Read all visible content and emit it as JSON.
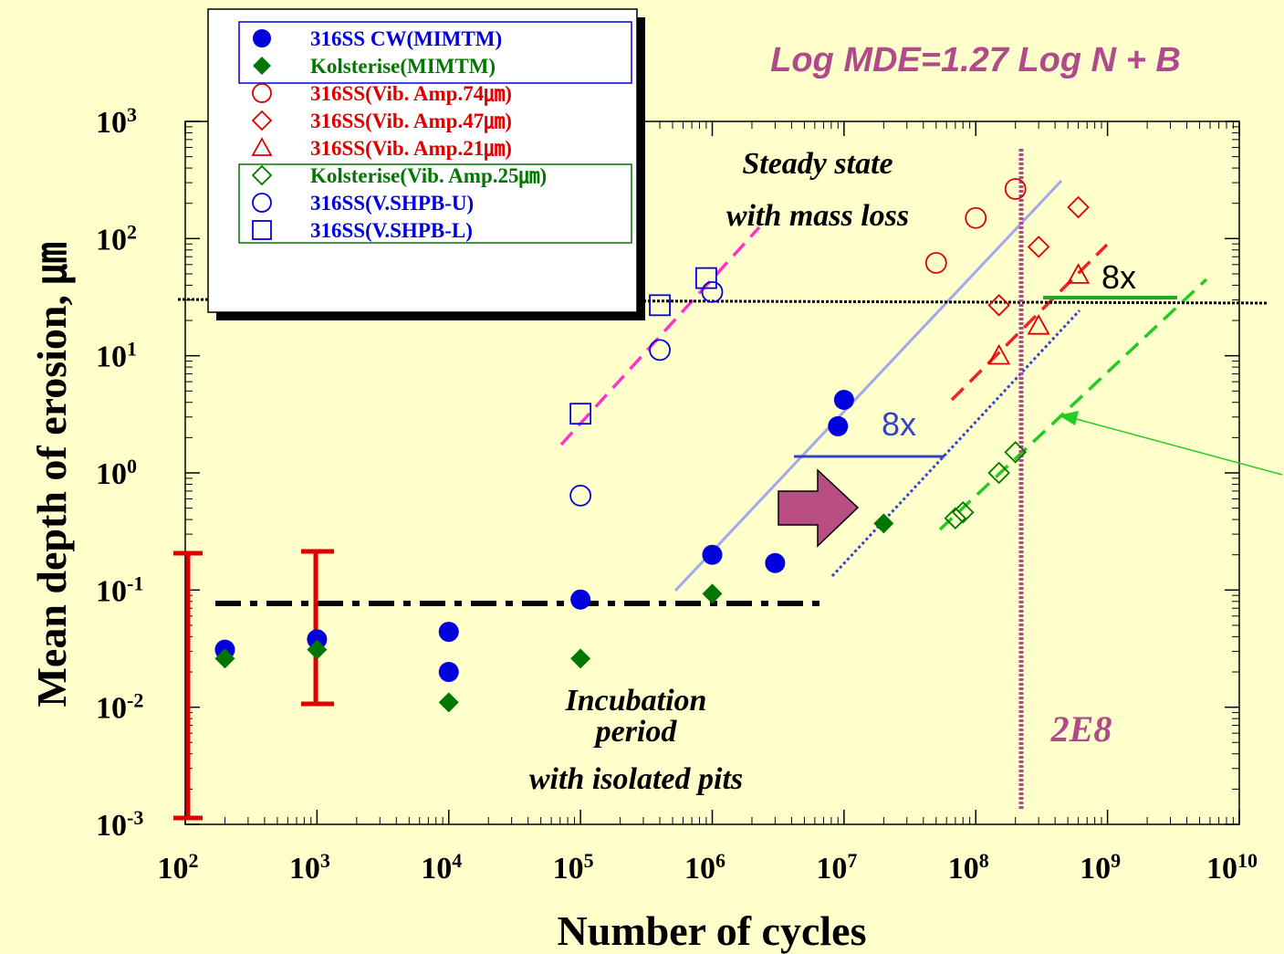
{
  "chart_data": {
    "type": "scatter",
    "xlabel": "Number of cycles",
    "ylabel": "Mean depth of erosion, ㎛",
    "xscale": "log",
    "yscale": "log",
    "xlim": [
      100,
      10000000000
    ],
    "ylim": [
      0.001,
      1000
    ],
    "x_ticks": [
      {
        "base": "10",
        "exp": "2",
        "value": 100
      },
      {
        "base": "10",
        "exp": "3",
        "value": 1000
      },
      {
        "base": "10",
        "exp": "4",
        "value": 10000
      },
      {
        "base": "10",
        "exp": "5",
        "value": 100000
      },
      {
        "base": "10",
        "exp": "6",
        "value": 1000000
      },
      {
        "base": "10",
        "exp": "7",
        "value": 10000000
      },
      {
        "base": "10",
        "exp": "8",
        "value": 100000000
      },
      {
        "base": "10",
        "exp": "9",
        "value": 1000000000
      },
      {
        "base": "10",
        "exp": "10",
        "value": 10000000000
      }
    ],
    "y_ticks": [
      {
        "base": "10",
        "exp": "3",
        "value": 1000
      },
      {
        "base": "10",
        "exp": "2",
        "value": 100
      },
      {
        "base": "10",
        "exp": "1",
        "value": 10
      },
      {
        "base": "10",
        "exp": "0",
        "value": 1
      },
      {
        "base": "10",
        "exp": "-1",
        "value": 0.1
      },
      {
        "base": "10",
        "exp": "-2",
        "value": 0.01
      },
      {
        "base": "10",
        "exp": "-3",
        "value": 0.001
      }
    ],
    "grid": false,
    "legend_position": "top-left",
    "series": [
      {
        "name": "316SS CW(MIMTM)",
        "marker": "circle",
        "filled": true,
        "color": "#0000dd",
        "points": [
          [
            200,
            0.031
          ],
          [
            1000,
            0.038
          ],
          [
            10000,
            0.044
          ],
          [
            10000,
            0.02
          ],
          [
            100000,
            0.083
          ],
          [
            1000000,
            0.2
          ],
          [
            3000000,
            0.17
          ],
          [
            9000000,
            2.5
          ],
          [
            10000000,
            4.2
          ]
        ]
      },
      {
        "name": "Kolsterise(MIMTM)",
        "marker": "diamond",
        "filled": true,
        "color": "#007700",
        "points": [
          [
            200,
            0.026
          ],
          [
            1000,
            0.031
          ],
          [
            10000,
            0.011
          ],
          [
            100000,
            0.026
          ],
          [
            1000000,
            0.093
          ],
          [
            20000000,
            0.37
          ]
        ]
      },
      {
        "name": "316SS(Vib. Amp.74㎛)",
        "marker": "circle",
        "filled": false,
        "color": "#dd0000",
        "points": [
          [
            50000000,
            62
          ],
          [
            100000000,
            150
          ],
          [
            200000000,
            265
          ]
        ]
      },
      {
        "name": "316SS(Vib. Amp.47㎛)",
        "marker": "diamond",
        "filled": false,
        "color": "#dd0000",
        "points": [
          [
            150000000,
            27
          ],
          [
            300000000,
            85
          ],
          [
            600000000,
            185
          ]
        ]
      },
      {
        "name": "316SS(Vib. Amp.21㎛)",
        "marker": "triangle",
        "filled": false,
        "color": "#dd0000",
        "points": [
          [
            150000000,
            10
          ],
          [
            300000000,
            18
          ],
          [
            600000000,
            49
          ]
        ]
      },
      {
        "name": "Kolsterise(Vib. Amp.25㎛)",
        "marker": "diamond",
        "filled": false,
        "color": "#007700",
        "points": [
          [
            70000000,
            0.41
          ],
          [
            80000000,
            0.46
          ],
          [
            150000000,
            1.0
          ],
          [
            200000000,
            1.5
          ]
        ]
      },
      {
        "name": "316SS(V.SHPB-U)",
        "marker": "circle",
        "filled": false,
        "color": "#0000dd",
        "points": [
          [
            100000,
            0.64
          ],
          [
            400000,
            11.2
          ],
          [
            1000000,
            35
          ]
        ]
      },
      {
        "name": "316SS(V.SHPB-L)",
        "marker": "square",
        "filled": false,
        "color": "#0000dd",
        "points": [
          [
            100000,
            3.2
          ],
          [
            400000,
            27
          ],
          [
            900000,
            46
          ]
        ]
      }
    ],
    "annotations": {
      "equation": "Log MDE=1.27 Log N + B",
      "steady_state": [
        "Steady state",
        "with mass loss"
      ],
      "incubation": [
        "Incubation",
        "period",
        "with isolated pits"
      ],
      "vline_label": "2E8",
      "factor_blue": "8x",
      "factor_black": "8x"
    },
    "reference_lines": {
      "vertical_x": 200000000,
      "upper_horizontal_y": 30,
      "lower_horizontal_y": 0.075,
      "lower_horizontal_x_range": [
        150,
        7000000
      ]
    },
    "colors": {
      "background": "#ffffcc",
      "blue": "#0000dd",
      "green": "#007700",
      "red": "#dd0000",
      "magenta_dash": "#ff33cc",
      "purple_vline": "#b04a8a",
      "equation_text": "#b04a8a",
      "arrow_fill": "#b84e84"
    }
  }
}
